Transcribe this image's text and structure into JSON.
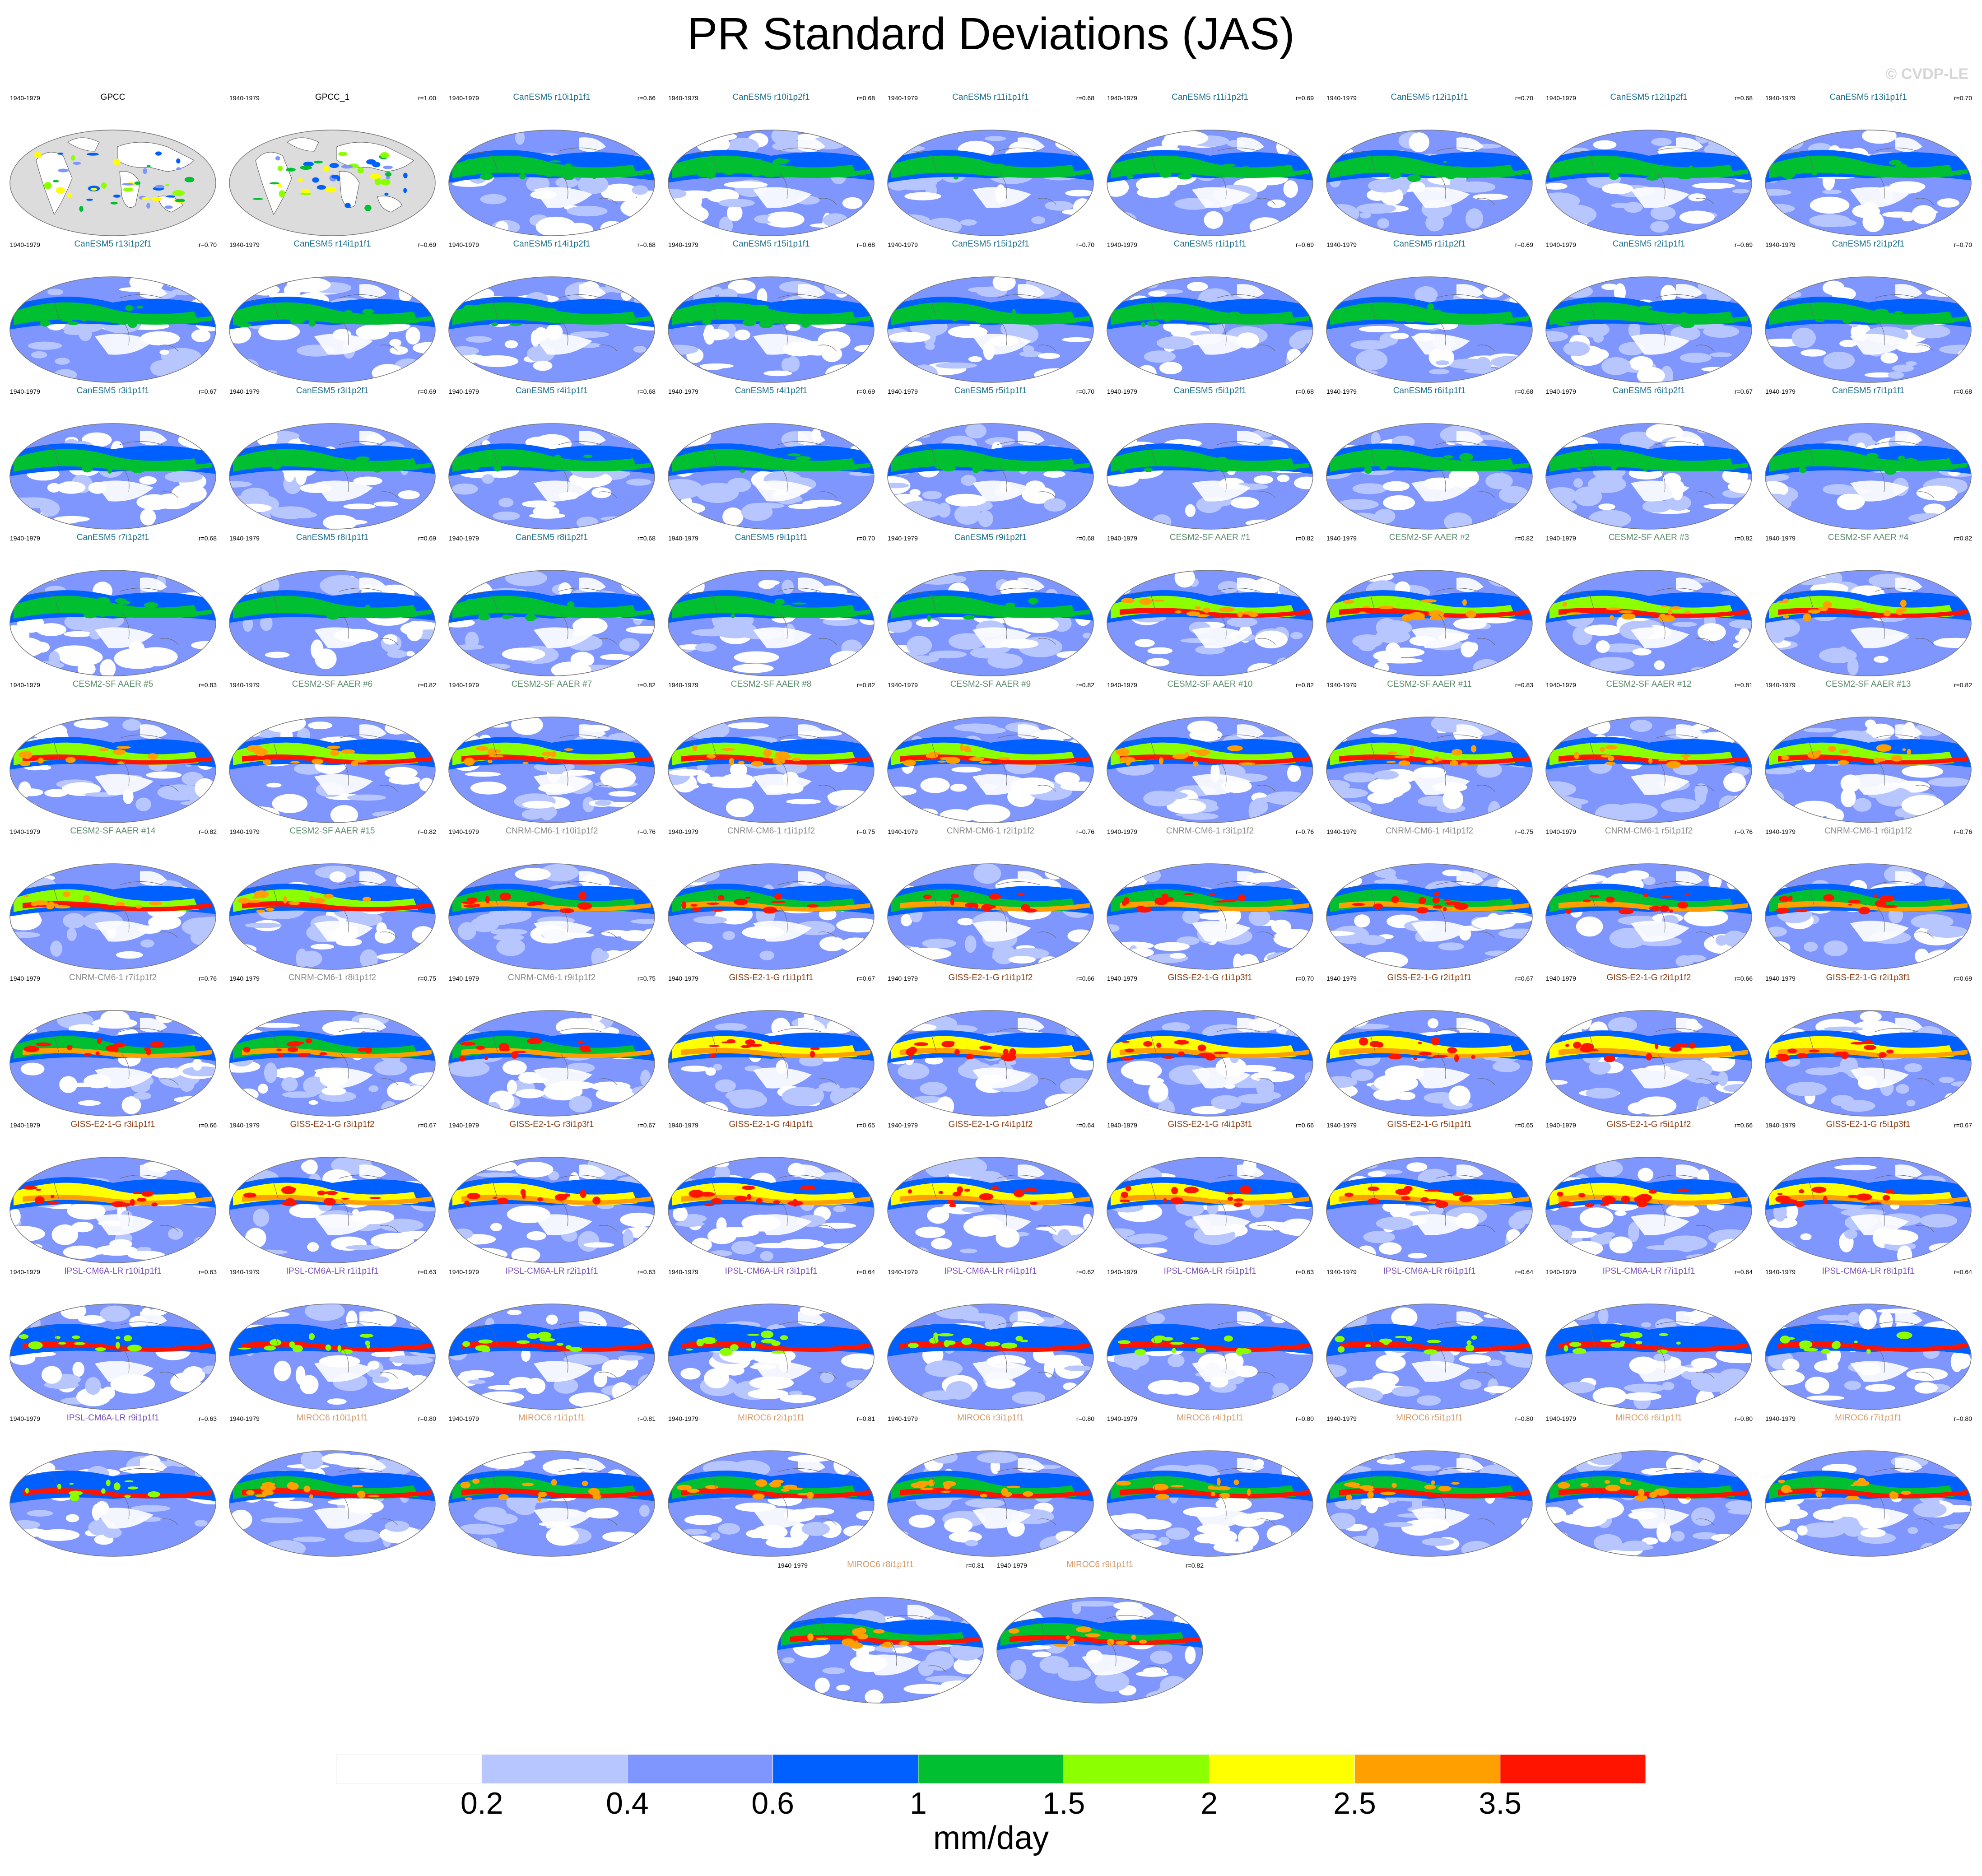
{
  "title": "PR Standard Deviations (JAS)",
  "credit": "© CVDP-LE",
  "colorbar": {
    "units": "mm/day",
    "ticks": [
      "0.2",
      "0.4",
      "0.6",
      "1",
      "1.5",
      "2",
      "2.5",
      "3.5"
    ],
    "colors": [
      "#ffffff",
      "#b8c6ff",
      "#8096ff",
      "#0060ff",
      "#00c032",
      "#8cff00",
      "#ffff00",
      "#ffa000",
      "#ff1400"
    ]
  },
  "family_colors": {
    "GPCC": "#000000",
    "CanESM5": "#1b6e8c",
    "CESM2-SF": "#5a8a6a",
    "CNRM": "#8a8a8a",
    "GISS": "#8b3a10",
    "IPSL": "#7a4fb8",
    "MIROC6": "#d49a6a"
  },
  "chart_data": {
    "type": "heatmap",
    "title": "PR Standard Deviations (JAS)",
    "units": "mm/day",
    "levels": [
      0.2,
      0.4,
      0.6,
      1,
      1.5,
      2,
      2.5,
      3.5
    ],
    "panels": [
      {
        "period": "1940-1979",
        "title": "GPCC",
        "r": "",
        "family": "GPCC"
      },
      {
        "period": "1940-1979",
        "title": "GPCC_1",
        "r": "r=1.00",
        "family": "GPCC"
      },
      {
        "period": "1940-1979",
        "title": "CanESM5 r10i1p1f1",
        "r": "r=0.66",
        "family": "CanESM5"
      },
      {
        "period": "1940-1979",
        "title": "CanESM5 r10i1p2f1",
        "r": "r=0.68",
        "family": "CanESM5"
      },
      {
        "period": "1940-1979",
        "title": "CanESM5 r11i1p1f1",
        "r": "r=0.68",
        "family": "CanESM5"
      },
      {
        "period": "1940-1979",
        "title": "CanESM5 r11i1p2f1",
        "r": "r=0.69",
        "family": "CanESM5"
      },
      {
        "period": "1940-1979",
        "title": "CanESM5 r12i1p1f1",
        "r": "r=0.70",
        "family": "CanESM5"
      },
      {
        "period": "1940-1979",
        "title": "CanESM5 r12i1p2f1",
        "r": "r=0.68",
        "family": "CanESM5"
      },
      {
        "period": "1940-1979",
        "title": "CanESM5 r13i1p1f1",
        "r": "r=0.70",
        "family": "CanESM5"
      },
      {
        "period": "1940-1979",
        "title": "CanESM5 r13i1p2f1",
        "r": "r=0.70",
        "family": "CanESM5"
      },
      {
        "period": "1940-1979",
        "title": "CanESM5 r14i1p1f1",
        "r": "r=0.69",
        "family": "CanESM5"
      },
      {
        "period": "1940-1979",
        "title": "CanESM5 r14i1p2f1",
        "r": "r=0.68",
        "family": "CanESM5"
      },
      {
        "period": "1940-1979",
        "title": "CanESM5 r15i1p1f1",
        "r": "r=0.68",
        "family": "CanESM5"
      },
      {
        "period": "1940-1979",
        "title": "CanESM5 r15i1p2f1",
        "r": "r=0.70",
        "family": "CanESM5"
      },
      {
        "period": "1940-1979",
        "title": "CanESM5 r1i1p1f1",
        "r": "r=0.69",
        "family": "CanESM5"
      },
      {
        "period": "1940-1979",
        "title": "CanESM5 r1i1p2f1",
        "r": "r=0.69",
        "family": "CanESM5"
      },
      {
        "period": "1940-1979",
        "title": "CanESM5 r2i1p1f1",
        "r": "r=0.69",
        "family": "CanESM5"
      },
      {
        "period": "1940-1979",
        "title": "CanESM5 r2i1p2f1",
        "r": "r=0.70",
        "family": "CanESM5"
      },
      {
        "period": "1940-1979",
        "title": "CanESM5 r3i1p1f1",
        "r": "r=0.67",
        "family": "CanESM5"
      },
      {
        "period": "1940-1979",
        "title": "CanESM5 r3i1p2f1",
        "r": "r=0.69",
        "family": "CanESM5"
      },
      {
        "period": "1940-1979",
        "title": "CanESM5 r4i1p1f1",
        "r": "r=0.68",
        "family": "CanESM5"
      },
      {
        "period": "1940-1979",
        "title": "CanESM5 r4i1p2f1",
        "r": "r=0.69",
        "family": "CanESM5"
      },
      {
        "period": "1940-1979",
        "title": "CanESM5 r5i1p1f1",
        "r": "r=0.70",
        "family": "CanESM5"
      },
      {
        "period": "1940-1979",
        "title": "CanESM5 r5i1p2f1",
        "r": "r=0.68",
        "family": "CanESM5"
      },
      {
        "period": "1940-1979",
        "title": "CanESM5 r6i1p1f1",
        "r": "r=0.68",
        "family": "CanESM5"
      },
      {
        "period": "1940-1979",
        "title": "CanESM5 r6i1p2f1",
        "r": "r=0.67",
        "family": "CanESM5"
      },
      {
        "period": "1940-1979",
        "title": "CanESM5 r7i1p1f1",
        "r": "r=0.68",
        "family": "CanESM5"
      },
      {
        "period": "1940-1979",
        "title": "CanESM5 r7i1p2f1",
        "r": "r=0.68",
        "family": "CanESM5"
      },
      {
        "period": "1940-1979",
        "title": "CanESM5 r8i1p1f1",
        "r": "r=0.69",
        "family": "CanESM5"
      },
      {
        "period": "1940-1979",
        "title": "CanESM5 r8i1p2f1",
        "r": "r=0.68",
        "family": "CanESM5"
      },
      {
        "period": "1940-1979",
        "title": "CanESM5 r9i1p1f1",
        "r": "r=0.70",
        "family": "CanESM5"
      },
      {
        "period": "1940-1979",
        "title": "CanESM5 r9i1p2f1",
        "r": "r=0.68",
        "family": "CanESM5"
      },
      {
        "period": "1940-1979",
        "title": "CESM2-SF AAER #1",
        "r": "r=0.82",
        "family": "CESM2-SF"
      },
      {
        "period": "1940-1979",
        "title": "CESM2-SF AAER #2",
        "r": "r=0.82",
        "family": "CESM2-SF"
      },
      {
        "period": "1940-1979",
        "title": "CESM2-SF AAER #3",
        "r": "r=0.82",
        "family": "CESM2-SF"
      },
      {
        "period": "1940-1979",
        "title": "CESM2-SF AAER #4",
        "r": "r=0.82",
        "family": "CESM2-SF"
      },
      {
        "period": "1940-1979",
        "title": "CESM2-SF AAER #5",
        "r": "r=0.83",
        "family": "CESM2-SF"
      },
      {
        "period": "1940-1979",
        "title": "CESM2-SF AAER #6",
        "r": "r=0.82",
        "family": "CESM2-SF"
      },
      {
        "period": "1940-1979",
        "title": "CESM2-SF AAER #7",
        "r": "r=0.82",
        "family": "CESM2-SF"
      },
      {
        "period": "1940-1979",
        "title": "CESM2-SF AAER #8",
        "r": "r=0.82",
        "family": "CESM2-SF"
      },
      {
        "period": "1940-1979",
        "title": "CESM2-SF AAER #9",
        "r": "r=0.82",
        "family": "CESM2-SF"
      },
      {
        "period": "1940-1979",
        "title": "CESM2-SF AAER #10",
        "r": "r=0.82",
        "family": "CESM2-SF"
      },
      {
        "period": "1940-1979",
        "title": "CESM2-SF AAER #11",
        "r": "r=0.83",
        "family": "CESM2-SF"
      },
      {
        "period": "1940-1979",
        "title": "CESM2-SF AAER #12",
        "r": "r=0.81",
        "family": "CESM2-SF"
      },
      {
        "period": "1940-1979",
        "title": "CESM2-SF AAER #13",
        "r": "r=0.82",
        "family": "CESM2-SF"
      },
      {
        "period": "1940-1979",
        "title": "CESM2-SF AAER #14",
        "r": "r=0.82",
        "family": "CESM2-SF"
      },
      {
        "period": "1940-1979",
        "title": "CESM2-SF AAER #15",
        "r": "r=0.82",
        "family": "CESM2-SF"
      },
      {
        "period": "1940-1979",
        "title": "CNRM-CM6-1 r10i1p1f2",
        "r": "r=0.76",
        "family": "CNRM"
      },
      {
        "period": "1940-1979",
        "title": "CNRM-CM6-1 r1i1p1f2",
        "r": "r=0.75",
        "family": "CNRM"
      },
      {
        "period": "1940-1979",
        "title": "CNRM-CM6-1 r2i1p1f2",
        "r": "r=0.76",
        "family": "CNRM"
      },
      {
        "period": "1940-1979",
        "title": "CNRM-CM6-1 r3i1p1f2",
        "r": "r=0.76",
        "family": "CNRM"
      },
      {
        "period": "1940-1979",
        "title": "CNRM-CM6-1 r4i1p1f2",
        "r": "r=0.75",
        "family": "CNRM"
      },
      {
        "period": "1940-1979",
        "title": "CNRM-CM6-1 r5i1p1f2",
        "r": "r=0.76",
        "family": "CNRM"
      },
      {
        "period": "1940-1979",
        "title": "CNRM-CM6-1 r6i1p1f2",
        "r": "r=0.76",
        "family": "CNRM"
      },
      {
        "period": "1940-1979",
        "title": "CNRM-CM6-1 r7i1p1f2",
        "r": "r=0.76",
        "family": "CNRM"
      },
      {
        "period": "1940-1979",
        "title": "CNRM-CM6-1 r8i1p1f2",
        "r": "r=0.75",
        "family": "CNRM"
      },
      {
        "period": "1940-1979",
        "title": "CNRM-CM6-1 r9i1p1f2",
        "r": "r=0.75",
        "family": "CNRM"
      },
      {
        "period": "1940-1979",
        "title": "GISS-E2-1-G r1i1p1f1",
        "r": "r=0.67",
        "family": "GISS"
      },
      {
        "period": "1940-1979",
        "title": "GISS-E2-1-G r1i1p1f2",
        "r": "r=0.66",
        "family": "GISS"
      },
      {
        "period": "1940-1979",
        "title": "GISS-E2-1-G r1i1p3f1",
        "r": "r=0.70",
        "family": "GISS"
      },
      {
        "period": "1940-1979",
        "title": "GISS-E2-1-G r2i1p1f1",
        "r": "r=0.67",
        "family": "GISS"
      },
      {
        "period": "1940-1979",
        "title": "GISS-E2-1-G r2i1p1f2",
        "r": "r=0.66",
        "family": "GISS"
      },
      {
        "period": "1940-1979",
        "title": "GISS-E2-1-G r2i1p3f1",
        "r": "r=0.69",
        "family": "GISS"
      },
      {
        "period": "1940-1979",
        "title": "GISS-E2-1-G r3i1p1f1",
        "r": "r=0.66",
        "family": "GISS"
      },
      {
        "period": "1940-1979",
        "title": "GISS-E2-1-G r3i1p1f2",
        "r": "r=0.67",
        "family": "GISS"
      },
      {
        "period": "1940-1979",
        "title": "GISS-E2-1-G r3i1p3f1",
        "r": "r=0.67",
        "family": "GISS"
      },
      {
        "period": "1940-1979",
        "title": "GISS-E2-1-G r4i1p1f1",
        "r": "r=0.65",
        "family": "GISS"
      },
      {
        "period": "1940-1979",
        "title": "GISS-E2-1-G r4i1p1f2",
        "r": "r=0.64",
        "family": "GISS"
      },
      {
        "period": "1940-1979",
        "title": "GISS-E2-1-G r4i1p3f1",
        "r": "r=0.66",
        "family": "GISS"
      },
      {
        "period": "1940-1979",
        "title": "GISS-E2-1-G r5i1p1f1",
        "r": "r=0.65",
        "family": "GISS"
      },
      {
        "period": "1940-1979",
        "title": "GISS-E2-1-G r5i1p1f2",
        "r": "r=0.66",
        "family": "GISS"
      },
      {
        "period": "1940-1979",
        "title": "GISS-E2-1-G r5i1p3f1",
        "r": "r=0.67",
        "family": "GISS"
      },
      {
        "period": "1940-1979",
        "title": "IPSL-CM6A-LR r10i1p1f1",
        "r": "r=0.63",
        "family": "IPSL"
      },
      {
        "period": "1940-1979",
        "title": "IPSL-CM6A-LR r1i1p1f1",
        "r": "r=0.63",
        "family": "IPSL"
      },
      {
        "period": "1940-1979",
        "title": "IPSL-CM6A-LR r2i1p1f1",
        "r": "r=0.63",
        "family": "IPSL"
      },
      {
        "period": "1940-1979",
        "title": "IPSL-CM6A-LR r3i1p1f1",
        "r": "r=0.64",
        "family": "IPSL"
      },
      {
        "period": "1940-1979",
        "title": "IPSL-CM6A-LR r4i1p1f1",
        "r": "r=0.62",
        "family": "IPSL"
      },
      {
        "period": "1940-1979",
        "title": "IPSL-CM6A-LR r5i1p1f1",
        "r": "r=0.63",
        "family": "IPSL"
      },
      {
        "period": "1940-1979",
        "title": "IPSL-CM6A-LR r6i1p1f1",
        "r": "r=0.64",
        "family": "IPSL"
      },
      {
        "period": "1940-1979",
        "title": "IPSL-CM6A-LR r7i1p1f1",
        "r": "r=0.64",
        "family": "IPSL"
      },
      {
        "period": "1940-1979",
        "title": "IPSL-CM6A-LR r8i1p1f1",
        "r": "r=0.64",
        "family": "IPSL"
      },
      {
        "period": "1940-1979",
        "title": "IPSL-CM6A-LR r9i1p1f1",
        "r": "r=0.63",
        "family": "IPSL"
      },
      {
        "period": "1940-1979",
        "title": "MIROC6 r10i1p1f1",
        "r": "r=0.80",
        "family": "MIROC6"
      },
      {
        "period": "1940-1979",
        "title": "MIROC6 r1i1p1f1",
        "r": "r=0.81",
        "family": "MIROC6"
      },
      {
        "period": "1940-1979",
        "title": "MIROC6 r2i1p1f1",
        "r": "r=0.81",
        "family": "MIROC6"
      },
      {
        "period": "1940-1979",
        "title": "MIROC6 r3i1p1f1",
        "r": "r=0.80",
        "family": "MIROC6"
      },
      {
        "period": "1940-1979",
        "title": "MIROC6 r4i1p1f1",
        "r": "r=0.80",
        "family": "MIROC6"
      },
      {
        "period": "1940-1979",
        "title": "MIROC6 r5i1p1f1",
        "r": "r=0.80",
        "family": "MIROC6"
      },
      {
        "period": "1940-1979",
        "title": "MIROC6 r6i1p1f1",
        "r": "r=0.80",
        "family": "MIROC6"
      },
      {
        "period": "1940-1979",
        "title": "MIROC6 r7i1p1f1",
        "r": "r=0.80",
        "family": "MIROC6"
      },
      {
        "period": "1940-1979",
        "title": "MIROC6 r8i1p1f1",
        "r": "r=0.81",
        "family": "MIROC6"
      },
      {
        "period": "1940-1979",
        "title": "MIROC6 r9i1p1f1",
        "r": "r=0.82",
        "family": "MIROC6"
      }
    ]
  }
}
